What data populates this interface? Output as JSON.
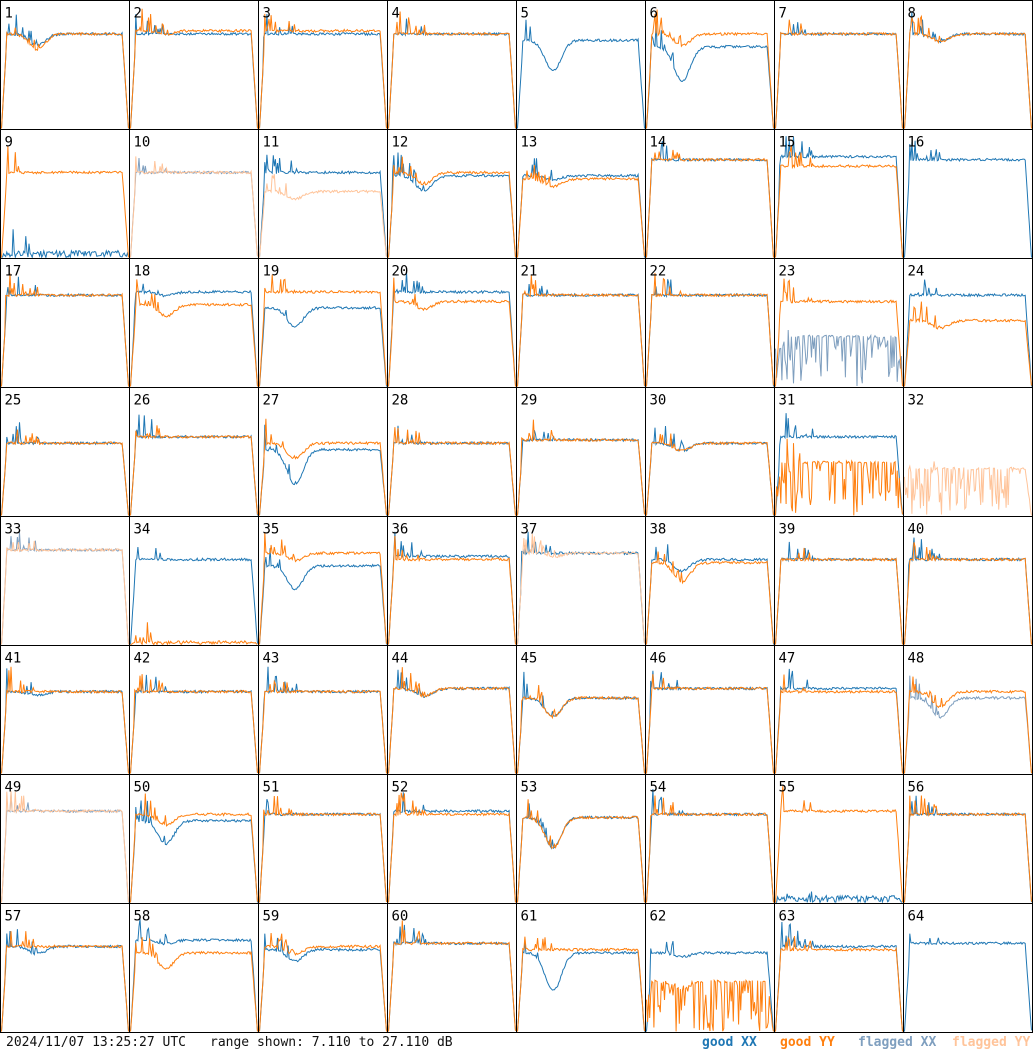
{
  "footer": {
    "timestamp": "2024/11/07 13:25:27 UTC",
    "range_text": "range shown: 7.110 to 27.110 dB"
  },
  "legend": [
    {
      "label": "good XX",
      "color": "#1f77b4"
    },
    {
      "label": "good YY",
      "color": "#ff7f0e"
    },
    {
      "label": "flagged XX",
      "color": "#7f9fbf"
    },
    {
      "label": "flagged YY",
      "color": "#ffc49a"
    }
  ],
  "chart_data": {
    "type": "line",
    "layout": "small-multiples 8x8",
    "ylim": [
      7.11,
      27.11
    ],
    "yunit": "dB",
    "series_names": [
      "good XX",
      "good YY",
      "flagged XX",
      "flagged YY"
    ],
    "panels": [
      {
        "label": "1",
        "xx": "good",
        "yy": "good",
        "xx_level": 22,
        "yy_level": 22,
        "xx_dip": 0.3,
        "yy_dip": 0.4
      },
      {
        "label": "2",
        "xx": "good",
        "yy": "good",
        "xx_level": 22,
        "yy_level": 22.5,
        "xx_dip": 0,
        "yy_dip": 0.1
      },
      {
        "label": "3",
        "xx": "good",
        "yy": "good",
        "xx_level": 22,
        "yy_level": 22.5,
        "xx_dip": 0,
        "yy_dip": 0
      },
      {
        "label": "4",
        "xx": "good",
        "yy": "good",
        "xx_level": 22,
        "yy_level": 22,
        "xx_dip": 0,
        "yy_dip": 0
      },
      {
        "label": "5",
        "xx": "good",
        "yy": "none",
        "xx_level": 21,
        "yy_level": null,
        "xx_dip": 0.8,
        "yy_dip": 0
      },
      {
        "label": "6",
        "xx": "good",
        "yy": "good",
        "xx_level": 20,
        "yy_level": 22,
        "xx_dip": 0.9,
        "yy_dip": 0.3
      },
      {
        "label": "7",
        "xx": "good",
        "yy": "good",
        "xx_level": 22,
        "yy_level": 22,
        "xx_dip": 0,
        "yy_dip": 0
      },
      {
        "label": "8",
        "xx": "good",
        "yy": "good",
        "xx_level": 22,
        "yy_level": 22,
        "xx_dip": 0.2,
        "yy_dip": 0.2
      },
      {
        "label": "9",
        "xx": "good",
        "yy": "good",
        "xx_level": 8,
        "yy_level": 20.5,
        "xx_dip": 0,
        "yy_dip": 0
      },
      {
        "label": "10",
        "xx": "flagged",
        "yy": "flagged",
        "xx_level": 20.5,
        "yy_level": 20.5,
        "xx_dip": 0,
        "yy_dip": 0
      },
      {
        "label": "11",
        "xx": "good",
        "yy": "flagged",
        "xx_level": 20.5,
        "yy_level": 17.5,
        "xx_dip": 0,
        "yy_dip": 0.2
      },
      {
        "label": "12",
        "xx": "good",
        "yy": "good",
        "xx_level": 20,
        "yy_level": 20.5,
        "xx_dip": 0.4,
        "yy_dip": 0.3
      },
      {
        "label": "13",
        "xx": "good",
        "yy": "good",
        "xx_level": 20,
        "yy_level": 19.5,
        "xx_dip": 0.1,
        "yy_dip": 0.2
      },
      {
        "label": "14",
        "xx": "good",
        "yy": "good",
        "xx_level": 22.5,
        "yy_level": 22.5,
        "xx_dip": 0,
        "yy_dip": 0
      },
      {
        "label": "15",
        "xx": "good",
        "yy": "good",
        "xx_level": 23,
        "yy_level": 21.5,
        "xx_dip": 0,
        "yy_dip": 0
      },
      {
        "label": "16",
        "xx": "good",
        "yy": "none",
        "xx_level": 22.5,
        "yy_level": null,
        "xx_dip": 0,
        "yy_dip": 0
      },
      {
        "label": "17",
        "xx": "good",
        "yy": "good",
        "xx_level": 21.5,
        "yy_level": 21.5,
        "xx_dip": 0,
        "yy_dip": 0
      },
      {
        "label": "18",
        "xx": "good",
        "yy": "good",
        "xx_level": 22,
        "yy_level": 20,
        "xx_dip": 0.1,
        "yy_dip": 0.3
      },
      {
        "label": "19",
        "xx": "good",
        "yy": "good",
        "xx_level": 19.5,
        "yy_level": 22,
        "xx_dip": 0.5,
        "yy_dip": 0
      },
      {
        "label": "20",
        "xx": "good",
        "yy": "good",
        "xx_level": 22,
        "yy_level": 20.5,
        "xx_dip": 0,
        "yy_dip": 0.2
      },
      {
        "label": "21",
        "xx": "good",
        "yy": "good",
        "xx_level": 21.5,
        "yy_level": 21.5,
        "xx_dip": 0,
        "yy_dip": 0
      },
      {
        "label": "22",
        "xx": "good",
        "yy": "good",
        "xx_level": 21.5,
        "yy_level": 21.5,
        "xx_dip": 0,
        "yy_dip": 0
      },
      {
        "label": "23",
        "xx": "flagged",
        "yy": "good",
        "xx_level": 15,
        "yy_level": 20.5,
        "xx_dip": 0,
        "yy_dip": 0
      },
      {
        "label": "24",
        "xx": "good",
        "yy": "good",
        "xx_level": 21.5,
        "yy_level": 17.5,
        "xx_dip": 0,
        "yy_dip": 0.2
      },
      {
        "label": "25",
        "xx": "good",
        "yy": "good",
        "xx_level": 18.5,
        "yy_level": 18.5,
        "xx_dip": 0,
        "yy_dip": 0
      },
      {
        "label": "26",
        "xx": "good",
        "yy": "good",
        "xx_level": 19.5,
        "yy_level": 19.5,
        "xx_dip": 0,
        "yy_dip": 0
      },
      {
        "label": "27",
        "xx": "good",
        "yy": "good",
        "xx_level": 17.5,
        "yy_level": 18.5,
        "xx_dip": 0.9,
        "yy_dip": 0.4
      },
      {
        "label": "28",
        "xx": "good",
        "yy": "good",
        "xx_level": 18.5,
        "yy_level": 18.5,
        "xx_dip": 0,
        "yy_dip": 0
      },
      {
        "label": "29",
        "xx": "good",
        "yy": "good",
        "xx_level": 19,
        "yy_level": 19,
        "xx_dip": 0,
        "yy_dip": 0
      },
      {
        "label": "30",
        "xx": "good",
        "yy": "good",
        "xx_level": 18.5,
        "yy_level": 18.5,
        "xx_dip": 0.2,
        "yy_dip": 0.2
      },
      {
        "label": "31",
        "xx": "good",
        "yy": "good",
        "xx_level": 19.5,
        "yy_level": 15.5,
        "xx_dip": 0,
        "yy_dip": 0
      },
      {
        "label": "32",
        "xx": "none",
        "yy": "flagged",
        "xx_level": null,
        "yy_level": 14.5,
        "xx_dip": 0,
        "yy_dip": 0
      },
      {
        "label": "33",
        "xx": "flagged",
        "yy": "flagged",
        "xx_level": 22,
        "yy_level": 22,
        "xx_dip": 0,
        "yy_dip": 0
      },
      {
        "label": "34",
        "xx": "good",
        "yy": "good",
        "xx_level": 20.5,
        "yy_level": 7.5,
        "xx_dip": 0,
        "yy_dip": 0
      },
      {
        "label": "35",
        "xx": "good",
        "yy": "good",
        "xx_level": 19.5,
        "yy_level": 21.5,
        "xx_dip": 0.6,
        "yy_dip": 0.2
      },
      {
        "label": "36",
        "xx": "good",
        "yy": "good",
        "xx_level": 21,
        "yy_level": 20.5,
        "xx_dip": 0,
        "yy_dip": 0
      },
      {
        "label": "37",
        "xx": "good",
        "yy": "flagged",
        "xx_level": 21.5,
        "yy_level": 21.5,
        "xx_dip": 0,
        "yy_dip": 0.1
      },
      {
        "label": "38",
        "xx": "good",
        "yy": "good",
        "xx_level": 20.5,
        "yy_level": 20,
        "xx_dip": 0.3,
        "yy_dip": 0.5
      },
      {
        "label": "39",
        "xx": "good",
        "yy": "good",
        "xx_level": 20.5,
        "yy_level": 20.5,
        "xx_dip": 0,
        "yy_dip": 0
      },
      {
        "label": "40",
        "xx": "good",
        "yy": "good",
        "xx_level": 20.5,
        "yy_level": 20.5,
        "xx_dip": 0,
        "yy_dip": 0
      },
      {
        "label": "41",
        "xx": "good",
        "yy": "good",
        "xx_level": 20,
        "yy_level": 20,
        "xx_dip": 0.1,
        "yy_dip": 0
      },
      {
        "label": "42",
        "xx": "good",
        "yy": "good",
        "xx_level": 20,
        "yy_level": 20,
        "xx_dip": 0,
        "yy_dip": 0
      },
      {
        "label": "43",
        "xx": "good",
        "yy": "good",
        "xx_level": 20,
        "yy_level": 20,
        "xx_dip": 0,
        "yy_dip": 0
      },
      {
        "label": "44",
        "xx": "good",
        "yy": "good",
        "xx_level": 20.5,
        "yy_level": 20.5,
        "xx_dip": 0.2,
        "yy_dip": 0.2
      },
      {
        "label": "45",
        "xx": "good",
        "yy": "good",
        "xx_level": 19,
        "yy_level": 19,
        "xx_dip": 0.5,
        "yy_dip": 0.5
      },
      {
        "label": "46",
        "xx": "good",
        "yy": "good",
        "xx_level": 20.5,
        "yy_level": 20.5,
        "xx_dip": 0,
        "yy_dip": 0
      },
      {
        "label": "47",
        "xx": "good",
        "yy": "good",
        "xx_level": 20.5,
        "yy_level": 20,
        "xx_dip": 0,
        "yy_dip": 0
      },
      {
        "label": "48",
        "xx": "flagged",
        "yy": "good",
        "xx_level": 19,
        "yy_level": 20,
        "xx_dip": 0.5,
        "yy_dip": 0.4
      },
      {
        "label": "49",
        "xx": "flagged",
        "yy": "flagged",
        "xx_level": 21.5,
        "yy_level": 21.5,
        "xx_dip": 0,
        "yy_dip": 0
      },
      {
        "label": "50",
        "xx": "good",
        "yy": "good",
        "xx_level": 20,
        "yy_level": 21,
        "xx_dip": 0.6,
        "yy_dip": 0.3
      },
      {
        "label": "51",
        "xx": "good",
        "yy": "good",
        "xx_level": 21,
        "yy_level": 21,
        "xx_dip": 0,
        "yy_dip": 0
      },
      {
        "label": "52",
        "xx": "good",
        "yy": "good",
        "xx_level": 21.5,
        "yy_level": 21,
        "xx_dip": 0,
        "yy_dip": 0
      },
      {
        "label": "53",
        "xx": "good",
        "yy": "good",
        "xx_level": 20.5,
        "yy_level": 20.5,
        "xx_dip": 0.8,
        "yy_dip": 0.8
      },
      {
        "label": "54",
        "xx": "good",
        "yy": "good",
        "xx_level": 21,
        "yy_level": 21,
        "xx_dip": 0,
        "yy_dip": 0
      },
      {
        "label": "55",
        "xx": "good",
        "yy": "good",
        "xx_level": 8,
        "yy_level": 21.5,
        "xx_dip": 0,
        "yy_dip": 0
      },
      {
        "label": "56",
        "xx": "good",
        "yy": "good",
        "xx_level": 21,
        "yy_level": 21,
        "xx_dip": 0,
        "yy_dip": 0
      },
      {
        "label": "57",
        "xx": "good",
        "yy": "good",
        "xx_level": 20.5,
        "yy_level": 20.5,
        "xx_dip": 0.2,
        "yy_dip": 0
      },
      {
        "label": "58",
        "xx": "good",
        "yy": "good",
        "xx_level": 21.5,
        "yy_level": 19.5,
        "xx_dip": 0.1,
        "yy_dip": 0.4
      },
      {
        "label": "59",
        "xx": "good",
        "yy": "good",
        "xx_level": 20,
        "yy_level": 20.5,
        "xx_dip": 0.3,
        "yy_dip": 0.2
      },
      {
        "label": "60",
        "xx": "good",
        "yy": "good",
        "xx_level": 21,
        "yy_level": 21,
        "xx_dip": 0,
        "yy_dip": 0
      },
      {
        "label": "61",
        "xx": "good",
        "yy": "good",
        "xx_level": 19.5,
        "yy_level": 20,
        "xx_dip": 1,
        "yy_dip": 0
      },
      {
        "label": "62",
        "xx": "good",
        "yy": "good",
        "xx_level": 19.5,
        "yy_level": 15,
        "xx_dip": 0.1,
        "yy_dip": 0.2
      },
      {
        "label": "63",
        "xx": "good",
        "yy": "good",
        "xx_level": 20.5,
        "yy_level": 20,
        "xx_dip": 0,
        "yy_dip": 0
      },
      {
        "label": "64",
        "xx": "good",
        "yy": "none",
        "xx_level": 21,
        "yy_level": null,
        "xx_dip": 0,
        "yy_dip": 0
      }
    ]
  }
}
